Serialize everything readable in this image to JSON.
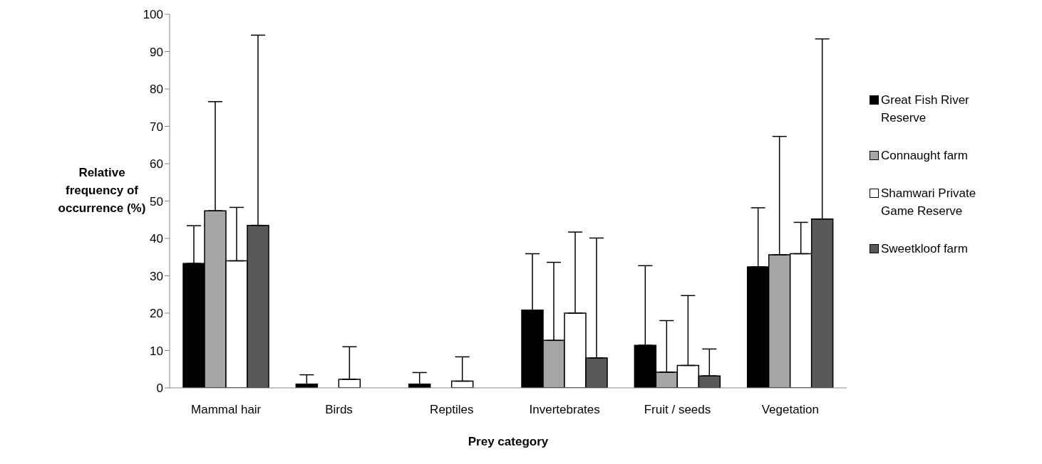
{
  "chart_data": {
    "type": "bar",
    "xlabel": "Prey category",
    "ylabel": "Relative frequency of occurrence (%)",
    "categories": [
      "Mammal hair",
      "Birds",
      "Reptiles",
      "Invertebrates",
      "Fruit / seeds",
      "Vegetation"
    ],
    "ylim": [
      0,
      100
    ],
    "yticks": [
      0,
      10,
      20,
      30,
      40,
      50,
      60,
      70,
      80,
      90,
      100
    ],
    "grid": false,
    "legend": "right",
    "series": [
      {
        "name": "Great Fish River Reserve",
        "color": "#000000",
        "values": [
          33.3,
          1,
          1,
          20.8,
          11.4,
          32.4
        ],
        "errors": [
          [
            33.3,
            43.4
          ],
          [
            1,
            3.5
          ],
          [
            1,
            4.1
          ],
          [
            20.8,
            35.9
          ],
          [
            11.4,
            32.7
          ],
          [
            32.4,
            48.2
          ]
        ]
      },
      {
        "name": "Connaught farm",
        "color": "#a6a6a6",
        "values": [
          47.4,
          0,
          0,
          12.7,
          4.2,
          35.6
        ],
        "errors": [
          [
            47.4,
            76.6
          ],
          null,
          null,
          [
            12.7,
            33.6
          ],
          [
            4.2,
            18
          ],
          [
            35.6,
            67.3
          ]
        ]
      },
      {
        "name": "Shamwari Private Game Reserve",
        "color": "#ffffff",
        "values": [
          34,
          2.3,
          1.8,
          20,
          6,
          35.9
        ],
        "errors": [
          [
            34,
            48.3
          ],
          [
            2.3,
            11
          ],
          [
            1.8,
            8.3
          ],
          [
            20,
            41.7
          ],
          [
            6,
            24.7
          ],
          [
            35.9,
            44.3
          ]
        ]
      },
      {
        "name": "Sweetkloof farm",
        "color": "#595959",
        "values": [
          43.5,
          0,
          0,
          8,
          3.2,
          45.2
        ],
        "errors": [
          [
            43.5,
            94.4
          ],
          null,
          null,
          [
            8,
            40.1
          ],
          [
            3.2,
            10.4
          ],
          [
            45.2,
            93.4
          ]
        ]
      }
    ]
  }
}
